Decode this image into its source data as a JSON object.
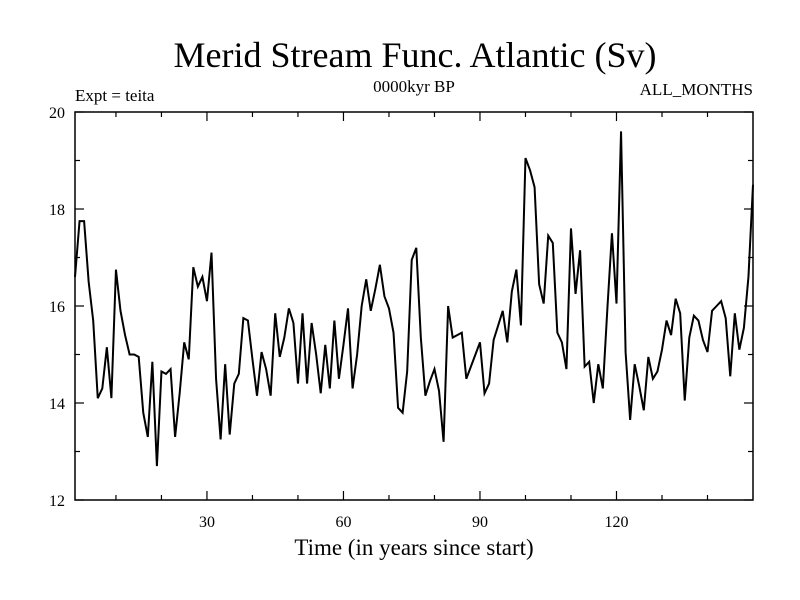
{
  "chart_data": {
    "type": "line",
    "title": "Merid Stream Func. Atlantic (Sv)",
    "subtitle_left": "Expt = teita",
    "subtitle_center": "0000kyr BP",
    "subtitle_right": "ALL_MONTHS",
    "xlabel": "Time (in years since start)",
    "ylabel": "",
    "xlim": [
      1,
      150
    ],
    "ylim": [
      12,
      20
    ],
    "xticks": [
      30,
      60,
      90,
      120
    ],
    "xticks_minor": [
      10,
      20,
      40,
      50,
      70,
      80,
      100,
      110,
      130,
      140
    ],
    "yticks": [
      12,
      14,
      16,
      18,
      20
    ],
    "yticks_minor": [
      13,
      15,
      17,
      19
    ],
    "series": [
      {
        "name": "Merid Stream Func. Atlantic",
        "color": "#000000",
        "x_start": 1,
        "x_step": 1,
        "values": [
          16.6,
          17.75,
          17.75,
          16.5,
          15.7,
          14.1,
          14.3,
          15.15,
          14.1,
          16.75,
          15.9,
          15.4,
          15.0,
          15.0,
          14.95,
          13.8,
          13.3,
          14.85,
          12.7,
          14.65,
          14.6,
          14.7,
          13.3,
          14.2,
          15.25,
          14.9,
          16.8,
          16.4,
          16.6,
          16.1,
          17.1,
          14.5,
          13.25,
          14.8,
          13.35,
          14.4,
          14.6,
          15.75,
          15.7,
          14.9,
          14.15,
          15.05,
          14.7,
          14.15,
          15.85,
          14.95,
          15.35,
          15.95,
          15.65,
          14.4,
          15.85,
          14.4,
          15.65,
          15.0,
          14.2,
          15.2,
          14.3,
          15.7,
          14.5,
          15.2,
          15.95,
          14.3,
          15.0,
          16.0,
          16.55,
          15.9,
          16.35,
          16.85,
          16.2,
          15.95,
          15.45,
          13.9,
          13.8,
          14.65,
          16.95,
          17.2,
          15.35,
          14.15,
          14.45,
          14.7,
          14.25,
          13.2,
          16.0,
          15.35,
          15.4,
          15.45,
          14.5,
          14.75,
          15.0,
          15.25,
          14.2,
          14.4,
          15.3,
          15.6,
          15.9,
          15.25,
          16.3,
          16.75,
          15.6,
          19.05,
          18.8,
          18.45,
          16.45,
          16.05,
          17.45,
          17.3,
          15.45,
          15.25,
          14.7,
          17.6,
          16.25,
          17.15,
          14.75,
          14.85,
          14.0,
          14.8,
          14.3,
          15.95,
          17.5,
          16.05,
          19.6,
          15.05,
          13.65,
          14.8,
          14.35,
          13.85,
          14.95,
          14.5,
          14.65,
          15.1,
          15.7,
          15.4,
          16.15,
          15.85,
          14.05,
          15.35,
          15.8,
          15.7,
          15.3,
          15.05,
          15.9,
          16.0,
          16.1,
          15.75,
          14.55,
          15.85,
          15.1,
          15.55,
          16.6,
          18.5
        ]
      }
    ]
  }
}
